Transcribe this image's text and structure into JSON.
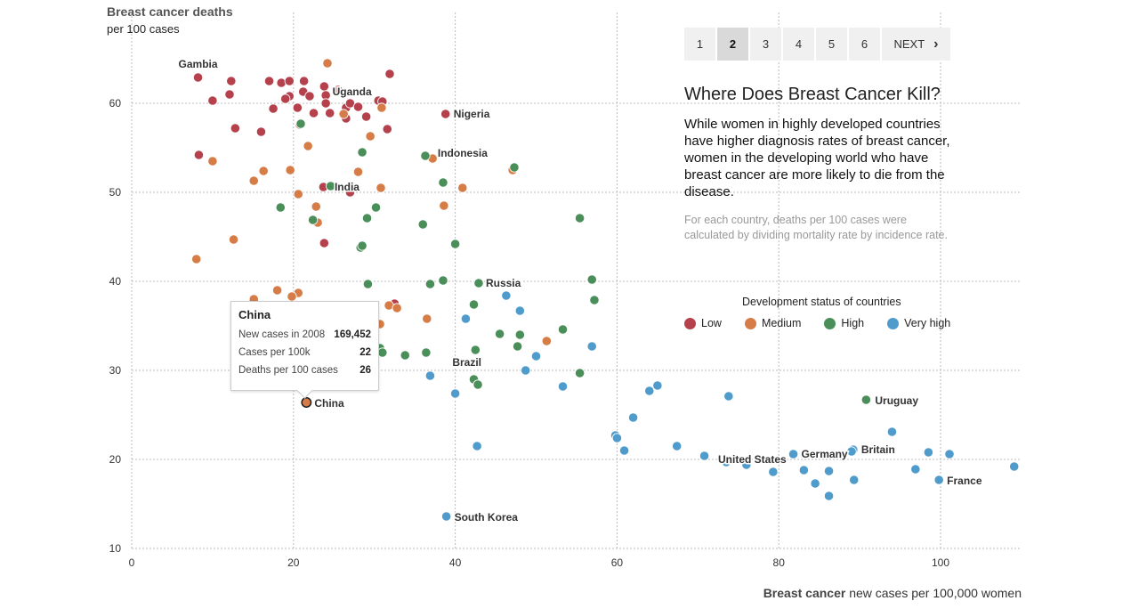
{
  "header": {
    "ylabel_title": "Breast cancer deaths",
    "ylabel_sub": "per 100 cases",
    "xlabel_bold": "Breast cancer",
    "xlabel_rest": " new cases per 100,000 women"
  },
  "pager": {
    "pages": [
      "1",
      "2",
      "3",
      "4",
      "5",
      "6"
    ],
    "active": "2",
    "next_label": "NEXT",
    "next_icon": "chevron-right-icon"
  },
  "panel": {
    "headline": "Where Does Breast Cancer Kill?",
    "description": "While women in highly developed countries have higher diagnosis rates of breast cancer, women in the developing world who have breast cancer are more likely to die from the disease.",
    "note": "For each country, deaths per 100 cases were calculated by dividing mortality rate by incidence rate."
  },
  "legend": {
    "title": "Development status of countries",
    "items": [
      {
        "label": "Low",
        "color": "#b5414c"
      },
      {
        "label": "Medium",
        "color": "#d57c47"
      },
      {
        "label": "High",
        "color": "#4a8f5a"
      },
      {
        "label": "Very high",
        "color": "#4f9ccc"
      }
    ]
  },
  "tooltip": {
    "title": "China",
    "rows": [
      {
        "label": "New cases in 2008",
        "value": "169,452"
      },
      {
        "label": "Cases per 100k",
        "value": "22"
      },
      {
        "label": "Deaths per 100 cases",
        "value": "26"
      }
    ]
  },
  "chart_data": {
    "type": "scatter",
    "xlabel": "Breast cancer new cases per 100,000 women",
    "ylabel": "Breast cancer deaths per 100 cases",
    "xlim": [
      0,
      110
    ],
    "ylim": [
      10,
      70
    ],
    "xticks": [
      0,
      20,
      40,
      60,
      80,
      100
    ],
    "yticks": [
      10,
      20,
      30,
      40,
      50,
      60
    ],
    "grid": true,
    "highlight": {
      "name": "China",
      "x": 21.6,
      "y": 26.4
    },
    "labels": [
      {
        "text": "Gambia",
        "x": 8.2,
        "y": 62.9
      },
      {
        "text": "Uganda",
        "x": 24.6,
        "y": 60.9
      },
      {
        "text": "Nigeria",
        "x": 38.8,
        "y": 58.8
      },
      {
        "text": "India",
        "x": 24.2,
        "y": 50.6
      },
      {
        "text": "Indonesia",
        "x": 36.4,
        "y": 54.0
      },
      {
        "text": "Russia",
        "x": 42.9,
        "y": 39.8
      },
      {
        "text": "Brazil",
        "x": 42.5,
        "y": 29.0
      },
      {
        "text": "China",
        "x": 21.6,
        "y": 26.4
      },
      {
        "text": "Uruguay",
        "x": 90.8,
        "y": 26.7
      },
      {
        "text": "Germany",
        "x": 81.8,
        "y": 20.6
      },
      {
        "text": "Britain",
        "x": 89.2,
        "y": 21.1
      },
      {
        "text": "United States",
        "x": 72.5,
        "y": 19.6
      },
      {
        "text": "France",
        "x": 99.8,
        "y": 17.7
      },
      {
        "text": "South Korea",
        "x": 38.9,
        "y": 13.6
      }
    ],
    "series": [
      {
        "name": "Low",
        "color": "#b5414c",
        "points": [
          [
            8.2,
            62.9
          ],
          [
            12.3,
            62.5
          ],
          [
            12.1,
            61.0
          ],
          [
            10.0,
            60.3
          ],
          [
            17.0,
            62.5
          ],
          [
            18.5,
            62.3
          ],
          [
            19.5,
            62.5
          ],
          [
            21.3,
            62.5
          ],
          [
            23.8,
            61.9
          ],
          [
            25.5,
            61.5
          ],
          [
            31.9,
            63.3
          ],
          [
            19.5,
            60.8
          ],
          [
            21.2,
            61.3
          ],
          [
            22.0,
            60.8
          ],
          [
            24.0,
            60.9
          ],
          [
            26.5,
            59.5
          ],
          [
            27.0,
            60.0
          ],
          [
            28.0,
            59.6
          ],
          [
            30.5,
            60.3
          ],
          [
            31.0,
            60.2
          ],
          [
            24.0,
            60.0
          ],
          [
            17.5,
            59.4
          ],
          [
            19.0,
            60.5
          ],
          [
            20.5,
            59.5
          ],
          [
            22.5,
            58.9
          ],
          [
            24.5,
            58.9
          ],
          [
            26.5,
            58.3
          ],
          [
            29.0,
            58.5
          ],
          [
            38.8,
            58.8
          ],
          [
            12.8,
            57.2
          ],
          [
            16.0,
            56.8
          ],
          [
            20.8,
            57.6
          ],
          [
            31.6,
            57.1
          ],
          [
            8.3,
            54.2
          ],
          [
            23.7,
            50.6
          ],
          [
            27.0,
            50.0
          ],
          [
            23.8,
            44.3
          ],
          [
            32.5,
            37.5
          ]
        ]
      },
      {
        "name": "Medium",
        "color": "#d57c47",
        "points": [
          [
            24.2,
            64.5
          ],
          [
            30.9,
            59.5
          ],
          [
            26.2,
            58.8
          ],
          [
            29.5,
            56.3
          ],
          [
            21.8,
            55.2
          ],
          [
            37.2,
            53.8
          ],
          [
            10.0,
            53.5
          ],
          [
            16.3,
            52.4
          ],
          [
            19.6,
            52.5
          ],
          [
            15.1,
            51.3
          ],
          [
            28.0,
            52.3
          ],
          [
            47.1,
            52.5
          ],
          [
            20.6,
            49.8
          ],
          [
            30.8,
            50.5
          ],
          [
            40.9,
            50.5
          ],
          [
            38.6,
            48.5
          ],
          [
            22.8,
            48.4
          ],
          [
            23.0,
            46.6
          ],
          [
            12.6,
            44.7
          ],
          [
            8.0,
            42.5
          ],
          [
            18.0,
            39.0
          ],
          [
            20.6,
            38.7
          ],
          [
            19.8,
            38.3
          ],
          [
            15.1,
            38.0
          ],
          [
            31.8,
            37.3
          ],
          [
            32.8,
            37.0
          ],
          [
            30.7,
            35.2
          ],
          [
            51.3,
            33.3
          ],
          [
            36.5,
            35.8
          ],
          [
            28.0,
            35.5
          ],
          [
            21.6,
            26.4
          ]
        ]
      },
      {
        "name": "High",
        "color": "#4a8f5a",
        "points": [
          [
            20.9,
            57.7
          ],
          [
            28.5,
            54.5
          ],
          [
            36.3,
            54.1
          ],
          [
            47.3,
            52.8
          ],
          [
            38.5,
            51.1
          ],
          [
            24.6,
            50.7
          ],
          [
            18.4,
            48.3
          ],
          [
            30.2,
            48.3
          ],
          [
            29.1,
            47.1
          ],
          [
            22.4,
            46.9
          ],
          [
            55.4,
            47.1
          ],
          [
            36.0,
            46.4
          ],
          [
            40.0,
            44.2
          ],
          [
            28.3,
            43.8
          ],
          [
            28.5,
            44.0
          ],
          [
            29.2,
            39.7
          ],
          [
            36.9,
            39.7
          ],
          [
            38.5,
            40.1
          ],
          [
            42.9,
            39.8
          ],
          [
            56.9,
            40.2
          ],
          [
            57.2,
            37.9
          ],
          [
            42.3,
            37.4
          ],
          [
            45.5,
            34.1
          ],
          [
            48.0,
            34.0
          ],
          [
            53.3,
            34.6
          ],
          [
            47.7,
            32.7
          ],
          [
            30.7,
            32.5
          ],
          [
            31.0,
            32.0
          ],
          [
            33.8,
            31.7
          ],
          [
            36.4,
            32.0
          ],
          [
            42.5,
            32.3
          ],
          [
            55.4,
            29.7
          ],
          [
            42.3,
            29.0
          ],
          [
            42.8,
            28.4
          ],
          [
            90.8,
            26.7
          ]
        ]
      },
      {
        "name": "Very high",
        "color": "#4f9ccc",
        "points": [
          [
            46.3,
            38.4
          ],
          [
            48.0,
            36.7
          ],
          [
            41.3,
            35.8
          ],
          [
            56.9,
            32.7
          ],
          [
            50.0,
            31.6
          ],
          [
            48.7,
            30.0
          ],
          [
            36.9,
            29.4
          ],
          [
            53.3,
            28.2
          ],
          [
            40.0,
            27.4
          ],
          [
            42.7,
            21.5
          ],
          [
            65.0,
            28.3
          ],
          [
            64.0,
            27.7
          ],
          [
            73.8,
            27.1
          ],
          [
            62.0,
            24.7
          ],
          [
            59.8,
            22.7
          ],
          [
            60.0,
            22.4
          ],
          [
            60.9,
            21.0
          ],
          [
            67.4,
            21.5
          ],
          [
            70.8,
            20.4
          ],
          [
            73.5,
            19.7
          ],
          [
            76.0,
            19.4
          ],
          [
            79.3,
            18.6
          ],
          [
            81.8,
            20.6
          ],
          [
            83.1,
            18.8
          ],
          [
            84.5,
            17.3
          ],
          [
            86.2,
            18.7
          ],
          [
            86.2,
            15.9
          ],
          [
            89.2,
            21.1
          ],
          [
            89.0,
            20.9
          ],
          [
            89.3,
            17.7
          ],
          [
            94.0,
            23.1
          ],
          [
            96.9,
            18.9
          ],
          [
            98.5,
            20.8
          ],
          [
            99.8,
            17.7
          ],
          [
            101.1,
            20.6
          ],
          [
            109.1,
            19.2
          ],
          [
            38.9,
            13.6
          ]
        ]
      }
    ]
  }
}
